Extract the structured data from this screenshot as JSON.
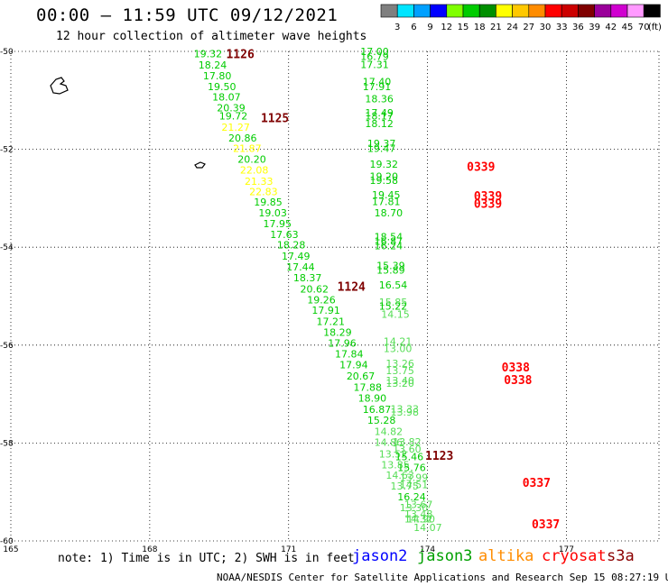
{
  "header": {
    "title": "00:00 – 11:59 UTC 09/12/2021",
    "subtitle": "12 hour collection of altimeter wave heights"
  },
  "scale": {
    "unit": "(ft)",
    "bins": [
      {
        "label": "3",
        "color": "#7f7f7f"
      },
      {
        "label": "6",
        "color": "#00e5ff"
      },
      {
        "label": "9",
        "color": "#00a0ff"
      },
      {
        "label": "12",
        "color": "#0000ff"
      },
      {
        "label": "15",
        "color": "#7fff00"
      },
      {
        "label": "18",
        "color": "#00cc00"
      },
      {
        "label": "21",
        "color": "#008f00"
      },
      {
        "label": "24",
        "color": "#ffff00"
      },
      {
        "label": "27",
        "color": "#ffc800"
      },
      {
        "label": "30",
        "color": "#ff8c00"
      },
      {
        "label": "33",
        "color": "#ff0000"
      },
      {
        "label": "36",
        "color": "#cc0000"
      },
      {
        "label": "39",
        "color": "#7f0000"
      },
      {
        "label": "42",
        "color": "#9a009a"
      },
      {
        "label": "45",
        "color": "#d000d0"
      },
      {
        "label": "70",
        "color": "#ff99ff"
      },
      {
        "label": "",
        "color": "#000000"
      }
    ]
  },
  "chart_data": {
    "type": "scatter",
    "title": "00:00 – 11:59 UTC 09/12/2021",
    "subtitle": "12 hour collection of altimeter wave heights",
    "xlim": [
      165,
      179
    ],
    "ylim": [
      -60,
      -50
    ],
    "xticks": [
      "165",
      "168",
      "171",
      "174",
      "177"
    ],
    "yticks": [
      "-50",
      "-52",
      "-54",
      "-56",
      "-58",
      "-60"
    ],
    "grid": true,
    "pass_labels": [
      {
        "text": "1126",
        "lon": 169.65,
        "lat": -50.05,
        "color": "#7f0000"
      },
      {
        "text": "1125",
        "lon": 170.4,
        "lat": -51.35,
        "color": "#7f0000"
      },
      {
        "text": "1124",
        "lon": 172.05,
        "lat": -54.8,
        "color": "#7f0000"
      },
      {
        "text": "1123",
        "lon": 173.95,
        "lat": -58.25,
        "color": "#7f0000"
      },
      {
        "text": "0339",
        "lon": 174.85,
        "lat": -52.35,
        "color": "#ff0000"
      },
      {
        "text": "0339",
        "lon": 175.0,
        "lat": -52.95,
        "color": "#ff0000"
      },
      {
        "text": "0339",
        "lon": 175.0,
        "lat": -53.1,
        "color": "#ff0000"
      },
      {
        "text": "0338",
        "lon": 175.6,
        "lat": -56.45,
        "color": "#ff0000"
      },
      {
        "text": "0338",
        "lon": 175.65,
        "lat": -56.7,
        "color": "#ff0000"
      },
      {
        "text": "0337",
        "lon": 176.05,
        "lat": -58.8,
        "color": "#ff0000"
      },
      {
        "text": "0337",
        "lon": 176.25,
        "lat": -59.65,
        "color": "#ff0000"
      }
    ],
    "series": [
      {
        "name": "1126",
        "points": [
          {
            "lon": 168.95,
            "lat": -50.05,
            "swh": "19.32",
            "color": "#00cc00"
          },
          {
            "lon": 169.05,
            "lat": -50.28,
            "swh": "18.24",
            "color": "#00cc00"
          },
          {
            "lon": 169.15,
            "lat": -50.5,
            "swh": "17.80",
            "color": "#00cc00"
          },
          {
            "lon": 169.25,
            "lat": -50.72,
            "swh": "19.50",
            "color": "#00cc00"
          },
          {
            "lon": 169.35,
            "lat": -50.93,
            "swh": "18.07",
            "color": "#00cc00"
          },
          {
            "lon": 169.45,
            "lat": -51.15,
            "swh": "20.39",
            "color": "#00cc00"
          },
          {
            "lon": 169.5,
            "lat": -51.32,
            "swh": "19.72",
            "color": "#00cc00"
          },
          {
            "lon": 169.55,
            "lat": -51.55,
            "swh": "21.27",
            "color": "#ffff00"
          },
          {
            "lon": 169.7,
            "lat": -51.77,
            "swh": "20.86",
            "color": "#00cc00"
          },
          {
            "lon": 169.8,
            "lat": -51.98,
            "swh": "21.87",
            "color": "#ffff00"
          },
          {
            "lon": 169.9,
            "lat": -52.2,
            "swh": "20.20",
            "color": "#00cc00"
          },
          {
            "lon": 169.95,
            "lat": -52.42,
            "swh": "22.08",
            "color": "#ffff00"
          },
          {
            "lon": 170.05,
            "lat": -52.65,
            "swh": "21.33",
            "color": "#ffff00"
          },
          {
            "lon": 170.15,
            "lat": -52.86,
            "swh": "22.83",
            "color": "#ffff00"
          }
        ]
      },
      {
        "name": "1125",
        "points": [
          {
            "lon": 170.25,
            "lat": -53.08,
            "swh": "19.85",
            "color": "#00cc00"
          },
          {
            "lon": 170.35,
            "lat": -53.3,
            "swh": "19.03",
            "color": "#00cc00"
          },
          {
            "lon": 170.45,
            "lat": -53.52,
            "swh": "17.95",
            "color": "#00cc00"
          },
          {
            "lon": 170.6,
            "lat": -53.74,
            "swh": "17.63",
            "color": "#00cc00"
          },
          {
            "lon": 170.75,
            "lat": -53.95,
            "swh": "18.28",
            "color": "#00cc00"
          },
          {
            "lon": 170.85,
            "lat": -54.18,
            "swh": "17.49",
            "color": "#00cc00"
          },
          {
            "lon": 170.95,
            "lat": -54.4,
            "swh": "17.44",
            "color": "#00cc00"
          },
          {
            "lon": 171.1,
            "lat": -54.62,
            "swh": "18.37",
            "color": "#00cc00"
          },
          {
            "lon": 171.25,
            "lat": -54.85,
            "swh": "20.62",
            "color": "#00cc00"
          },
          {
            "lon": 171.4,
            "lat": -55.07,
            "swh": "19.26",
            "color": "#00cc00"
          },
          {
            "lon": 171.5,
            "lat": -55.29,
            "swh": "17.91",
            "color": "#00cc00"
          },
          {
            "lon": 171.6,
            "lat": -55.52,
            "swh": "17.21",
            "color": "#00cc00"
          },
          {
            "lon": 171.75,
            "lat": -55.74,
            "swh": "18.29",
            "color": "#00cc00"
          },
          {
            "lon": 171.85,
            "lat": -55.96,
            "swh": "17.96",
            "color": "#00cc00"
          },
          {
            "lon": 172.0,
            "lat": -56.18,
            "swh": "17.84",
            "color": "#00cc00"
          },
          {
            "lon": 172.1,
            "lat": -56.4,
            "swh": "17.94",
            "color": "#00cc00"
          },
          {
            "lon": 172.25,
            "lat": -56.63,
            "swh": "20.67",
            "color": "#00cc00"
          },
          {
            "lon": 172.4,
            "lat": -56.86,
            "swh": "17.88",
            "color": "#00cc00"
          },
          {
            "lon": 172.5,
            "lat": -57.08,
            "swh": "18.90",
            "color": "#00cc00"
          },
          {
            "lon": 172.6,
            "lat": -57.31,
            "swh": "16.87",
            "color": "#00cc00"
          },
          {
            "lon": 172.7,
            "lat": -57.53,
            "swh": "15.28",
            "color": "#00cc00"
          }
        ]
      },
      {
        "name": "1124",
        "points": [
          {
            "lon": 172.85,
            "lat": -57.76,
            "swh": "14.82",
            "color": "#55dd55"
          },
          {
            "lon": 172.85,
            "lat": -57.98,
            "swh": "14.86",
            "color": "#55dd55"
          },
          {
            "lon": 172.95,
            "lat": -58.22,
            "swh": "13.52",
            "color": "#55dd55"
          },
          {
            "lon": 173.0,
            "lat": -58.44,
            "swh": "13.85",
            "color": "#55dd55"
          },
          {
            "lon": 173.1,
            "lat": -58.66,
            "swh": "14.63",
            "color": "#55dd55"
          },
          {
            "lon": 173.2,
            "lat": -58.88,
            "swh": "13.75",
            "color": "#55dd55"
          },
          {
            "lon": 173.35,
            "lat": -59.1,
            "swh": "16.24",
            "color": "#00cc00"
          },
          {
            "lon": 173.4,
            "lat": -59.32,
            "swh": "13.30",
            "color": "#55dd55"
          },
          {
            "lon": 173.5,
            "lat": -59.55,
            "swh": "14.32",
            "color": "#55dd55"
          },
          {
            "lon": 173.7,
            "lat": -59.72,
            "swh": "14.07",
            "color": "#55dd55"
          }
        ]
      },
      {
        "name": "0339",
        "points": [
          {
            "lon": 172.55,
            "lat": -50.0,
            "swh": "17.00",
            "color": "#00cc00"
          },
          {
            "lon": 172.55,
            "lat": -50.1,
            "swh": "16.79",
            "color": "#00cc00"
          },
          {
            "lon": 172.55,
            "lat": -50.27,
            "swh": "17.31",
            "color": "#00cc00"
          },
          {
            "lon": 172.6,
            "lat": -50.62,
            "swh": "17.40",
            "color": "#00cc00"
          },
          {
            "lon": 172.6,
            "lat": -50.72,
            "swh": "17.91",
            "color": "#00cc00"
          },
          {
            "lon": 172.65,
            "lat": -50.97,
            "swh": "18.36",
            "color": "#00cc00"
          },
          {
            "lon": 172.65,
            "lat": -51.25,
            "swh": "17.49",
            "color": "#00cc00"
          },
          {
            "lon": 172.65,
            "lat": -51.32,
            "swh": "18.17",
            "color": "#00cc00"
          },
          {
            "lon": 172.65,
            "lat": -51.47,
            "swh": "18.12",
            "color": "#00cc00"
          },
          {
            "lon": 172.7,
            "lat": -51.88,
            "swh": "19.37",
            "color": "#00cc00"
          },
          {
            "lon": 172.7,
            "lat": -51.98,
            "swh": "19.47",
            "color": "#00cc00"
          },
          {
            "lon": 172.75,
            "lat": -52.3,
            "swh": "19.32",
            "color": "#00cc00"
          },
          {
            "lon": 172.75,
            "lat": -52.55,
            "swh": "19.20",
            "color": "#00cc00"
          },
          {
            "lon": 172.75,
            "lat": -52.63,
            "swh": "19.58",
            "color": "#00cc00"
          },
          {
            "lon": 172.8,
            "lat": -52.93,
            "swh": "19.45",
            "color": "#00cc00"
          },
          {
            "lon": 172.8,
            "lat": -53.07,
            "swh": "17.81",
            "color": "#00cc00"
          },
          {
            "lon": 172.85,
            "lat": -53.3,
            "swh": "18.70",
            "color": "#00cc00"
          },
          {
            "lon": 172.85,
            "lat": -53.78,
            "swh": "18.54",
            "color": "#00cc00"
          },
          {
            "lon": 172.85,
            "lat": -53.88,
            "swh": "16.87",
            "color": "#00cc00"
          },
          {
            "lon": 172.85,
            "lat": -53.97,
            "swh": "16.24",
            "color": "#00cc00"
          },
          {
            "lon": 172.9,
            "lat": -54.37,
            "swh": "15.39",
            "color": "#00cc00"
          },
          {
            "lon": 172.9,
            "lat": -54.47,
            "swh": "15.89",
            "color": "#00cc00"
          },
          {
            "lon": 172.95,
            "lat": -54.77,
            "swh": "16.54",
            "color": "#00cc00"
          },
          {
            "lon": 172.95,
            "lat": -55.12,
            "swh": "15.85",
            "color": "#55dd55"
          },
          {
            "lon": 172.95,
            "lat": -55.2,
            "swh": "15.22",
            "color": "#00cc00"
          },
          {
            "lon": 173.0,
            "lat": -55.37,
            "swh": "14.15",
            "color": "#55dd55"
          }
        ]
      },
      {
        "name": "0338",
        "points": [
          {
            "lon": 173.05,
            "lat": -55.92,
            "swh": "14.21",
            "color": "#55dd55"
          },
          {
            "lon": 173.05,
            "lat": -56.07,
            "swh": "13.00",
            "color": "#55dd55"
          },
          {
            "lon": 173.1,
            "lat": -56.37,
            "swh": "13.26",
            "color": "#55dd55"
          },
          {
            "lon": 173.1,
            "lat": -56.52,
            "swh": "13.75",
            "color": "#55dd55"
          },
          {
            "lon": 173.1,
            "lat": -56.72,
            "swh": "13.40",
            "color": "#55dd55"
          },
          {
            "lon": 173.1,
            "lat": -56.78,
            "swh": "13.20",
            "color": "#55dd55"
          },
          {
            "lon": 173.2,
            "lat": -57.3,
            "swh": "13.33",
            "color": "#55dd55"
          },
          {
            "lon": 173.2,
            "lat": -57.37,
            "swh": "13.98",
            "color": "#55dd55"
          },
          {
            "lon": 173.25,
            "lat": -57.97,
            "swh": "13.82",
            "color": "#55dd55"
          },
          {
            "lon": 173.25,
            "lat": -58.12,
            "swh": "13.60",
            "color": "#55dd55"
          },
          {
            "lon": 173.3,
            "lat": -58.28,
            "swh": "15.46",
            "color": "#00cc00"
          }
        ]
      },
      {
        "name": "0337",
        "points": [
          {
            "lon": 173.35,
            "lat": -58.5,
            "swh": "15.76",
            "color": "#00cc00"
          },
          {
            "lon": 173.4,
            "lat": -58.7,
            "swh": "13.99",
            "color": "#55dd55"
          },
          {
            "lon": 173.4,
            "lat": -58.85,
            "swh": "14.51",
            "color": "#55dd55"
          },
          {
            "lon": 173.5,
            "lat": -59.25,
            "swh": "13.67",
            "color": "#55dd55"
          },
          {
            "lon": 173.5,
            "lat": -59.45,
            "swh": "13.48",
            "color": "#55dd55"
          },
          {
            "lon": 173.55,
            "lat": -59.55,
            "swh": "14.90",
            "color": "#55dd55"
          }
        ]
      }
    ]
  },
  "note": "note: 1) Time is in UTC; 2) SWH is in feet",
  "satellites": [
    {
      "label": "jason2",
      "color": "#0000ff"
    },
    {
      "label": "jason3",
      "color": "#00a000"
    },
    {
      "label": "altika",
      "color": "#ff8c00"
    },
    {
      "label": "cryosat",
      "color": "#ff0000"
    },
    {
      "label": "s3a",
      "color": "#8b0000"
    }
  ],
  "footer": "NOAA/NESDIS Center for Satellite Applications and Research   Sep 15 08:27:19 UTC 2021"
}
